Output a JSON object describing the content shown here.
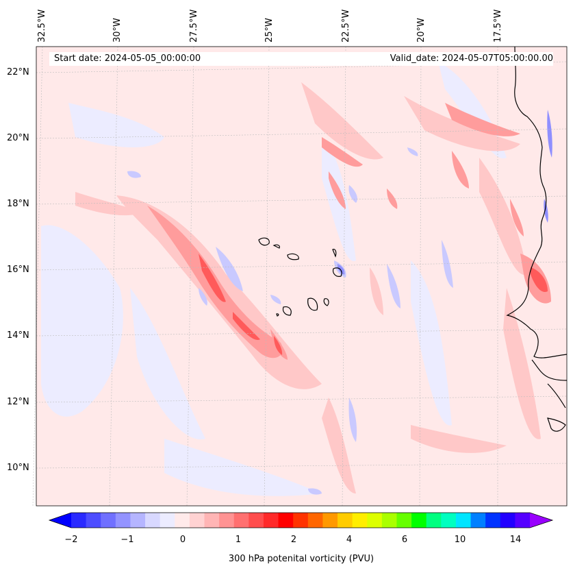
{
  "header": {
    "start_date": "Start date: 2024-05-05_00:00:00",
    "valid_date": "Valid_date: 2024-05-07T05:00:00.00"
  },
  "axes": {
    "lon_labels": [
      "32.5°W",
      "30°W",
      "27.5°W",
      "25°W",
      "22.5°W",
      "20°W",
      "17.5°W"
    ],
    "lat_labels": [
      "22°N",
      "20°N",
      "18°N",
      "16°N",
      "14°N",
      "12°N",
      "10°N"
    ]
  },
  "colorbar": {
    "label": "300 hPa potenital vorticity (PVU)",
    "ticks": [
      "−2",
      "−1",
      "0",
      "1",
      "2",
      "4",
      "6",
      "10",
      "14"
    ],
    "colors": [
      "#0000ff",
      "#2a2aff",
      "#4d4dff",
      "#7070ff",
      "#9393ff",
      "#b5b5ff",
      "#d8d8ff",
      "#ececff",
      "#ffeaea",
      "#ffd2d2",
      "#ffb5b5",
      "#ff9393",
      "#ff7070",
      "#ff4d4d",
      "#ff2a2a",
      "#ff0000",
      "#ff3300",
      "#ff6600",
      "#ff9900",
      "#ffcc00",
      "#ffee00",
      "#ddff00",
      "#aaff00",
      "#66ff00",
      "#00ff00",
      "#00ff80",
      "#00ffc0",
      "#00e5ff",
      "#0080ff",
      "#0033ff",
      "#2200ff",
      "#5500ff",
      "#9900ff"
    ]
  },
  "field_colors": {
    "background": "#ffe9e9",
    "light_blue": "#ececff",
    "blue": "#c9c9ff",
    "mid_blue": "#8f8fff",
    "light_red": "#ffc8c8",
    "red": "#ff9c9c",
    "strong_red": "#ff6d6d",
    "deep_red": "#ff3a3a"
  }
}
